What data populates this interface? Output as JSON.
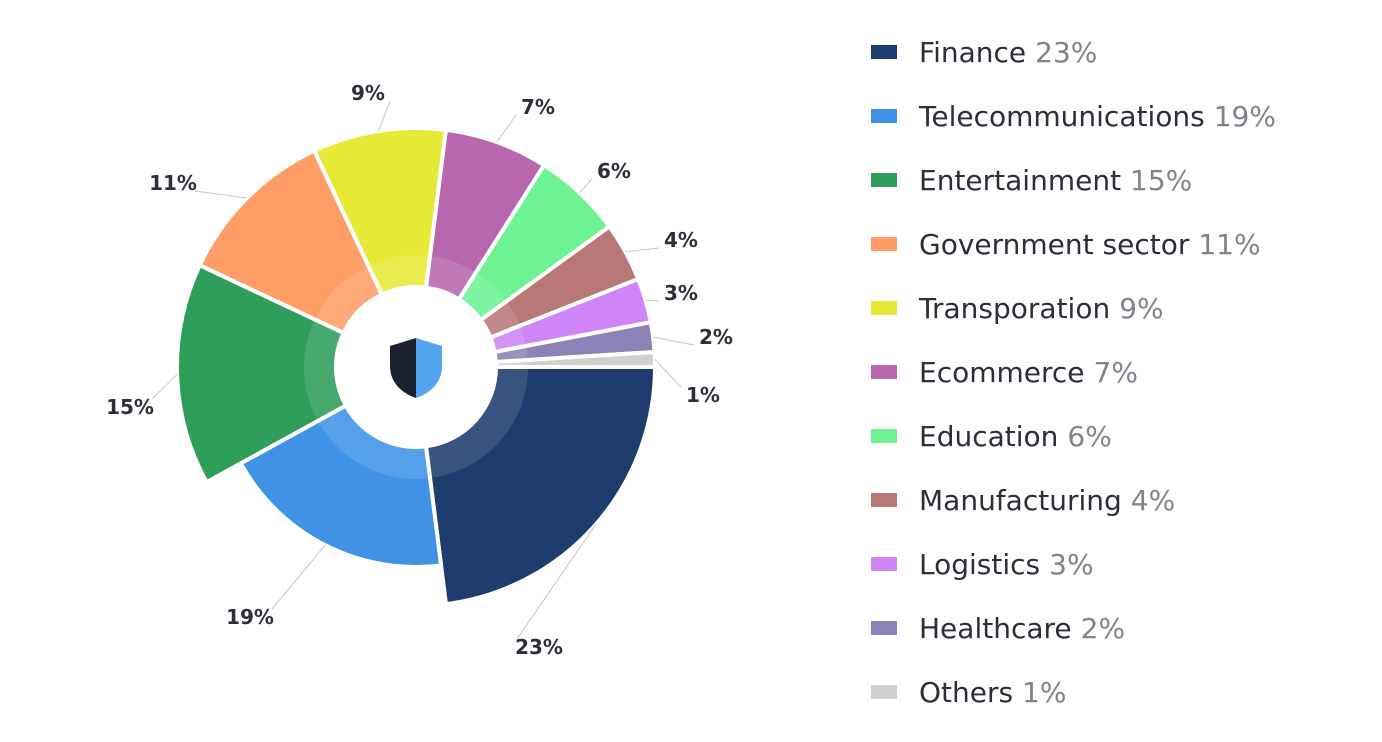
{
  "chart_data": {
    "type": "pie",
    "style": "donut",
    "categories": [
      "Finance",
      "Telecommunications",
      "Entertainment",
      "Government sector",
      "Transporation",
      "Ecommerce",
      "Education",
      "Manufacturing",
      "Logistics",
      "Healthcare",
      "Others"
    ],
    "values": [
      23,
      19,
      15,
      11,
      9,
      7,
      6,
      4,
      3,
      2,
      1
    ],
    "slice_labels": [
      "23%",
      "19%",
      "15%",
      "11%",
      "9%",
      "7%",
      "6%",
      "4%",
      "3%",
      "2%",
      "1%"
    ],
    "colors": [
      "#1e3c6e",
      "#3f92e6",
      "#2e9e5a",
      "#ff9d66",
      "#e6e936",
      "#b866ad",
      "#6df294",
      "#b87878",
      "#cf85f7",
      "#8c82b8",
      "#d0d0d0"
    ],
    "legend_position": "right",
    "center_icon": "shield-icon"
  },
  "legend": [
    {
      "name": "Finance",
      "pct": "23%"
    },
    {
      "name": "Telecommunications",
      "pct": "19%"
    },
    {
      "name": "Entertainment",
      "pct": "15%"
    },
    {
      "name": "Government sector",
      "pct": "11%"
    },
    {
      "name": "Transporation",
      "pct": "9%"
    },
    {
      "name": "Ecommerce",
      "pct": "7%"
    },
    {
      "name": "Education",
      "pct": "6%"
    },
    {
      "name": "Manufacturing",
      "pct": "4%"
    },
    {
      "name": "Logistics",
      "pct": "3%"
    },
    {
      "name": "Healthcare",
      "pct": "2%"
    },
    {
      "name": "Others",
      "pct": "1%"
    }
  ]
}
